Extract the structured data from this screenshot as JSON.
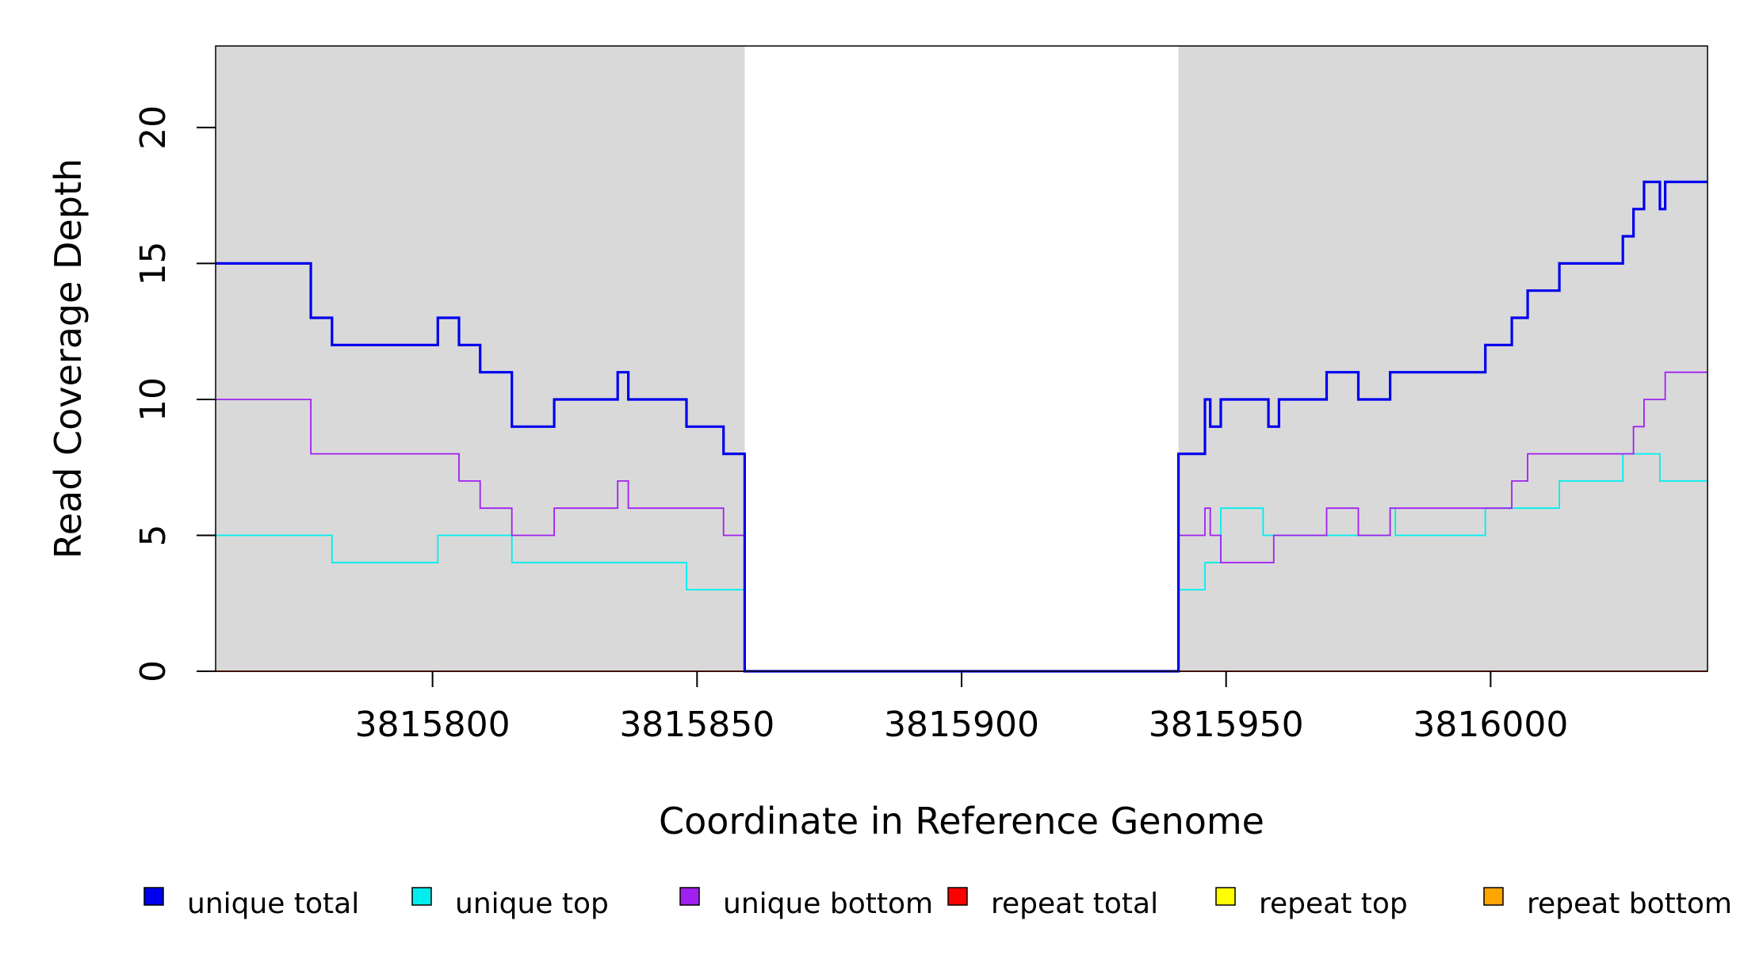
{
  "chart_data": {
    "type": "line",
    "title": "",
    "xlabel": "Coordinate in Reference Genome",
    "ylabel": "Read Coverage Depth",
    "xlim": [
      3815759,
      3816041
    ],
    "ylim": [
      0,
      23
    ],
    "x_ticks": [
      3815800,
      3815850,
      3815900,
      3815950,
      3816000
    ],
    "x_tick_labels": [
      "3815800",
      "3815850",
      "3815900",
      "3815950",
      "3816000"
    ],
    "y_ticks": [
      0,
      5,
      10,
      15,
      20
    ],
    "y_tick_labels": [
      "0",
      "5",
      "10",
      "15",
      "20"
    ],
    "shaded_regions": [
      {
        "x0": 3815759,
        "x1": 3815859,
        "color": "#d9d9d9"
      },
      {
        "x0": 3815941,
        "x1": 3816041,
        "color": "#d9d9d9"
      }
    ],
    "legend_position": "bottom",
    "series": [
      {
        "name": "unique total",
        "color": "#0000ee",
        "step": true,
        "points": [
          [
            3815759,
            15
          ],
          [
            3815777,
            13
          ],
          [
            3815781,
            12
          ],
          [
            3815801,
            13
          ],
          [
            3815805,
            12
          ],
          [
            3815809,
            11
          ],
          [
            3815815,
            9
          ],
          [
            3815823,
            10
          ],
          [
            3815835,
            11
          ],
          [
            3815837,
            10
          ],
          [
            3815848,
            9
          ],
          [
            3815855,
            8
          ],
          [
            3815859,
            0
          ],
          [
            3815941,
            8
          ],
          [
            3815946,
            10
          ],
          [
            3815947,
            9
          ],
          [
            3815949,
            10
          ],
          [
            3815958,
            9
          ],
          [
            3815960,
            10
          ],
          [
            3815969,
            11
          ],
          [
            3815975,
            10
          ],
          [
            3815981,
            11
          ],
          [
            3815999,
            12
          ],
          [
            3816004,
            13
          ],
          [
            3816007,
            14
          ],
          [
            3816013,
            15
          ],
          [
            3816025,
            16
          ],
          [
            3816027,
            17
          ],
          [
            3816029,
            18
          ],
          [
            3816032,
            17
          ],
          [
            3816033,
            18
          ],
          [
            3816041,
            18
          ]
        ]
      },
      {
        "name": "unique top",
        "color": "#00eeee",
        "step": true,
        "points": [
          [
            3815759,
            5
          ],
          [
            3815781,
            4
          ],
          [
            3815801,
            5
          ],
          [
            3815815,
            4
          ],
          [
            3815848,
            3
          ],
          [
            3815859,
            0
          ],
          [
            3815941,
            3
          ],
          [
            3815946,
            4
          ],
          [
            3815949,
            6
          ],
          [
            3815957,
            5
          ],
          [
            3815981,
            6
          ],
          [
            3815982,
            5
          ],
          [
            3815999,
            6
          ],
          [
            3816013,
            7
          ],
          [
            3816025,
            8
          ],
          [
            3816032,
            7
          ],
          [
            3816041,
            7
          ]
        ]
      },
      {
        "name": "unique bottom",
        "color": "#a020f0",
        "step": true,
        "points": [
          [
            3815759,
            10
          ],
          [
            3815777,
            8
          ],
          [
            3815805,
            7
          ],
          [
            3815809,
            6
          ],
          [
            3815815,
            5
          ],
          [
            3815823,
            6
          ],
          [
            3815835,
            7
          ],
          [
            3815837,
            6
          ],
          [
            3815855,
            5
          ],
          [
            3815859,
            0
          ],
          [
            3815941,
            5
          ],
          [
            3815946,
            6
          ],
          [
            3815947,
            5
          ],
          [
            3815949,
            4
          ],
          [
            3815959,
            5
          ],
          [
            3815969,
            6
          ],
          [
            3815975,
            5
          ],
          [
            3815981,
            6
          ],
          [
            3816004,
            7
          ],
          [
            3816007,
            8
          ],
          [
            3816027,
            9
          ],
          [
            3816029,
            10
          ],
          [
            3816033,
            11
          ],
          [
            3816041,
            11
          ]
        ]
      },
      {
        "name": "repeat total",
        "color": "#ff0000",
        "step": true,
        "points": [
          [
            3815759,
            0
          ],
          [
            3816041,
            0
          ]
        ]
      },
      {
        "name": "repeat top",
        "color": "#ffff00",
        "step": true,
        "points": [
          [
            3815759,
            0
          ],
          [
            3816041,
            0
          ]
        ]
      },
      {
        "name": "repeat bottom",
        "color": "#ffa500",
        "step": true,
        "points": [
          [
            3815759,
            0
          ],
          [
            3816041,
            0
          ]
        ]
      }
    ]
  }
}
